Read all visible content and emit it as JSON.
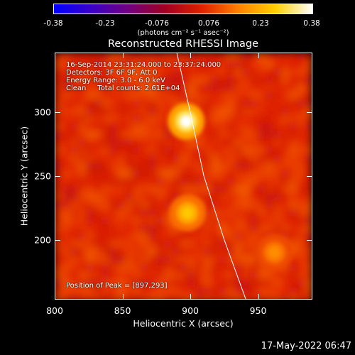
{
  "colorbar": {
    "ticks": [
      "-0.38",
      "-0.23",
      "-0.076",
      "0.076",
      "0.23",
      "0.38"
    ],
    "tick_values": [
      -0.38,
      -0.23,
      -0.076,
      0.076,
      0.23,
      0.38
    ],
    "unit": "(photons cm⁻² s⁻¹ asec⁻²)",
    "colors": [
      "#0000ff",
      "#3a00c8",
      "#700080",
      "#a00020",
      "#e02000",
      "#ff8000",
      "#ffd000",
      "#ffffff"
    ]
  },
  "title": "Reconstructed RHESSI Image",
  "info": {
    "line1": "16-Sep-2014 23:31:24.000 to 23:37:24.000",
    "line2": "Detectors: 3F 6F 9F, Att 0",
    "line3": "Energy Range: 3.0 - 6.0 keV",
    "line4": "Clean     Total counts: 2.61E+04",
    "peak": "Position of Peak = [897,293]"
  },
  "chart_data": {
    "type": "heatmap",
    "title": "Reconstructed RHESSI Image",
    "xlabel": "Heliocentric X (arcsec)",
    "ylabel": "Heliocentric Y (arcsec)",
    "xlim": [
      800,
      990
    ],
    "ylim": [
      153,
      347
    ],
    "xticks": [
      800,
      850,
      900,
      950
    ],
    "yticks": [
      200,
      250,
      300
    ],
    "xtick_labels": [
      "800",
      "850",
      "900",
      "950"
    ],
    "ytick_labels": [
      "200",
      "250",
      "300"
    ],
    "sources": [
      {
        "x": 897,
        "y": 293,
        "intensity": 0.38
      },
      {
        "x": 898,
        "y": 221,
        "intensity": 0.26
      },
      {
        "x": 962,
        "y": 190,
        "intensity": 0.18
      }
    ],
    "limb_curve": [
      [
        890,
        347
      ],
      [
        900,
        300
      ],
      [
        910,
        250
      ],
      [
        925,
        200
      ],
      [
        941,
        153
      ]
    ]
  },
  "timestamp": "17-May-2022 06:47"
}
